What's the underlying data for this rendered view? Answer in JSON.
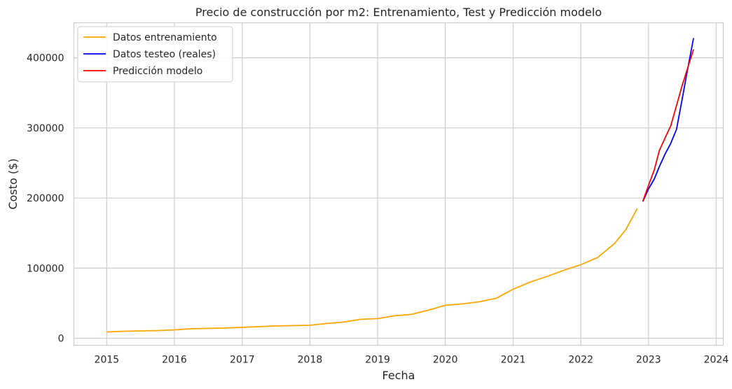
{
  "chart_data": {
    "type": "line",
    "title": "Precio de construcción por m2: Entrenamiento, Test y Predicción modelo",
    "xlabel": "Fecha",
    "ylabel": "Costo ($)",
    "x_ticks": [
      "2015",
      "2016",
      "2017",
      "2018",
      "2019",
      "2020",
      "2021",
      "2022",
      "2023",
      "2024"
    ],
    "y_ticks": [
      "0",
      "100000",
      "200000",
      "300000",
      "400000"
    ],
    "xlim": [
      "2014-07-08",
      "2024-02-08"
    ],
    "ylim": [
      -10000,
      450000
    ],
    "grid": true,
    "legend": "top-left",
    "series": [
      {
        "name": "Datos entrenamiento",
        "color": "#FFA500",
        "points": [
          [
            "2015-01-01",
            9000
          ],
          [
            "2015-04-01",
            10000
          ],
          [
            "2015-07-01",
            10500
          ],
          [
            "2015-10-01",
            11000
          ],
          [
            "2016-01-01",
            12000
          ],
          [
            "2016-04-01",
            13500
          ],
          [
            "2016-07-01",
            14000
          ],
          [
            "2016-10-01",
            14500
          ],
          [
            "2017-01-01",
            15500
          ],
          [
            "2017-04-01",
            16500
          ],
          [
            "2017-07-01",
            17500
          ],
          [
            "2017-10-01",
            18000
          ],
          [
            "2018-01-01",
            18500
          ],
          [
            "2018-04-01",
            21000
          ],
          [
            "2018-07-01",
            23000
          ],
          [
            "2018-10-01",
            27000
          ],
          [
            "2019-01-01",
            28000
          ],
          [
            "2019-04-01",
            32000
          ],
          [
            "2019-07-01",
            34000
          ],
          [
            "2019-10-01",
            40000
          ],
          [
            "2020-01-01",
            47000
          ],
          [
            "2020-04-01",
            49000
          ],
          [
            "2020-07-01",
            52000
          ],
          [
            "2020-10-01",
            57000
          ],
          [
            "2021-01-01",
            70000
          ],
          [
            "2021-04-01",
            80000
          ],
          [
            "2021-07-01",
            88000
          ],
          [
            "2021-10-01",
            97000
          ],
          [
            "2022-01-01",
            105000
          ],
          [
            "2022-04-01",
            115000
          ],
          [
            "2022-07-01",
            135000
          ],
          [
            "2022-09-01",
            155000
          ],
          [
            "2022-11-01",
            185000
          ]
        ]
      },
      {
        "name": "Datos testeo (reales)",
        "color": "#0000FF",
        "points": [
          [
            "2022-12-01",
            195000
          ],
          [
            "2023-01-01",
            213000
          ],
          [
            "2023-02-01",
            227000
          ],
          [
            "2023-03-01",
            245000
          ],
          [
            "2023-04-01",
            263000
          ],
          [
            "2023-05-01",
            278000
          ],
          [
            "2023-06-01",
            298000
          ],
          [
            "2023-07-01",
            340000
          ],
          [
            "2023-08-01",
            385000
          ],
          [
            "2023-09-01",
            428000
          ]
        ]
      },
      {
        "name": "Predicción modelo",
        "color": "#FF0000",
        "points": [
          [
            "2022-12-01",
            195000
          ],
          [
            "2023-01-01",
            218000
          ],
          [
            "2023-02-01",
            240000
          ],
          [
            "2023-03-01",
            268000
          ],
          [
            "2023-04-01",
            286000
          ],
          [
            "2023-05-01",
            303000
          ],
          [
            "2023-06-01",
            332000
          ],
          [
            "2023-07-01",
            360000
          ],
          [
            "2023-08-01",
            386000
          ],
          [
            "2023-09-01",
            412000
          ]
        ]
      }
    ]
  }
}
